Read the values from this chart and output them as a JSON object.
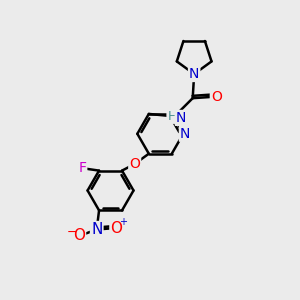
{
  "background_color": "#ebebeb",
  "bond_color": "#000000",
  "bond_width": 1.8,
  "atom_colors": {
    "N": "#0000cc",
    "O": "#ff0000",
    "F": "#cc00cc",
    "H": "#4a9090",
    "C": "#000000"
  },
  "font_size": 10,
  "fig_size": [
    3.0,
    3.0
  ],
  "dpi": 100
}
